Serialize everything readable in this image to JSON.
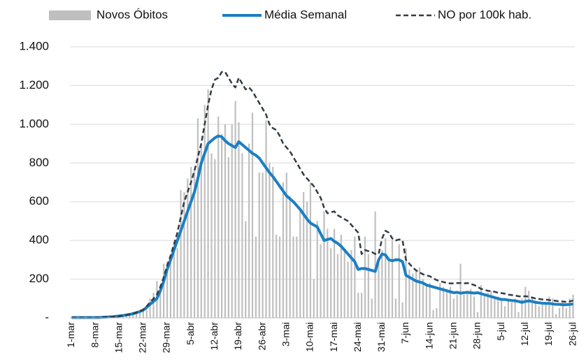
{
  "chart_data": {
    "type": "bar",
    "categories": [
      "1-mar",
      null,
      null,
      null,
      null,
      null,
      null,
      "8-mar",
      null,
      null,
      null,
      null,
      null,
      null,
      "15-mar",
      null,
      null,
      null,
      null,
      null,
      null,
      "22-mar",
      null,
      null,
      null,
      null,
      null,
      null,
      "29-mar",
      null,
      null,
      null,
      null,
      null,
      null,
      "5-abr",
      null,
      null,
      null,
      null,
      null,
      null,
      "12-abr",
      null,
      null,
      null,
      null,
      null,
      null,
      "19-abr",
      null,
      null,
      null,
      null,
      null,
      null,
      "26-abr",
      null,
      null,
      null,
      null,
      null,
      null,
      "3-mai",
      null,
      null,
      null,
      null,
      null,
      null,
      "10-mai",
      null,
      null,
      null,
      null,
      null,
      null,
      "17-mai",
      null,
      null,
      null,
      null,
      null,
      null,
      "24-mai",
      null,
      null,
      null,
      null,
      null,
      null,
      "31-mai",
      null,
      null,
      null,
      null,
      null,
      null,
      "7-jun",
      null,
      null,
      null,
      null,
      null,
      null,
      "14-jun",
      null,
      null,
      null,
      null,
      null,
      null,
      "21-jun",
      null,
      null,
      null,
      null,
      null,
      null,
      "28-jun",
      null,
      null,
      null,
      null,
      null,
      null,
      "5-jul",
      null,
      null,
      null,
      null,
      null,
      null,
      "12-jul",
      null,
      null,
      null,
      null,
      null,
      null,
      "19-jul",
      null,
      null,
      null,
      null,
      null,
      null,
      "26-jul"
    ],
    "series": [
      {
        "name": "Novos Óbitos",
        "type": "bar",
        "color": "#bfbfbf",
        "values": [
          0,
          0,
          0,
          0,
          0,
          0,
          0,
          0,
          0,
          5,
          5,
          5,
          8,
          10,
          12,
          15,
          20,
          25,
          30,
          35,
          40,
          50,
          60,
          100,
          130,
          190,
          170,
          280,
          290,
          300,
          380,
          360,
          660,
          650,
          720,
          780,
          760,
          1030,
          900,
          1100,
          1180,
          850,
          820,
          1040,
          950,
          1000,
          830,
          1000,
          1120,
          1010,
          850,
          500,
          900,
          1060,
          420,
          750,
          750,
          1020,
          800,
          780,
          430,
          420,
          700,
          750,
          630,
          420,
          420,
          550,
          650,
          600,
          700,
          200,
          500,
          380,
          550,
          460,
          360,
          460,
          330,
          430,
          350,
          290,
          350,
          420,
          130,
          130,
          420,
          330,
          100,
          550,
          300,
          350,
          410,
          300,
          400,
          100,
          380,
          80,
          360,
          250,
          230,
          250,
          260,
          200,
          170,
          180,
          40,
          50,
          180,
          160,
          150,
          160,
          100,
          120,
          280,
          120,
          140,
          150,
          110,
          30,
          170,
          120,
          130,
          140,
          100,
          110,
          100,
          60,
          90,
          80,
          100,
          30,
          100,
          160,
          140,
          110,
          90,
          60,
          80,
          70,
          110,
          100,
          20,
          50,
          80,
          50,
          100,
          120
        ]
      },
      {
        "name": "Média Semanal",
        "type": "line",
        "color": "#1a7fc4",
        "dashed": false,
        "values": [
          2,
          2,
          2,
          2,
          2,
          2,
          2,
          2,
          2,
          3,
          4,
          5,
          6,
          8,
          10,
          12,
          15,
          18,
          22,
          27,
          33,
          40,
          55,
          70,
          85,
          100,
          140,
          190,
          250,
          300,
          350,
          400,
          450,
          500,
          550,
          600,
          650,
          720,
          800,
          850,
          900,
          915,
          930,
          940,
          935,
          915,
          900,
          890,
          880,
          910,
          895,
          880,
          865,
          850,
          840,
          825,
          800,
          775,
          750,
          730,
          705,
          680,
          655,
          630,
          615,
          600,
          580,
          560,
          535,
          510,
          490,
          480,
          470,
          435,
          400,
          405,
          410,
          395,
          385,
          370,
          350,
          330,
          310,
          290,
          250,
          255,
          255,
          250,
          245,
          240,
          300,
          330,
          325,
          300,
          295,
          300,
          300,
          290,
          220,
          210,
          200,
          190,
          185,
          180,
          170,
          165,
          160,
          155,
          150,
          145,
          140,
          135,
          130,
          132,
          128,
          130,
          132,
          130,
          128,
          130,
          125,
          120,
          115,
          110,
          105,
          100,
          95,
          95,
          92,
          90,
          88,
          85,
          80,
          85,
          88,
          85,
          80,
          78,
          76,
          75,
          75,
          72,
          70,
          70,
          68,
          68,
          70,
          72
        ]
      },
      {
        "name": "NO por 100k hab.",
        "type": "line",
        "color": "#333b45",
        "dashed": true,
        "values": [
          2,
          2,
          2,
          2,
          2,
          2,
          2,
          2,
          2,
          3,
          4,
          5,
          6,
          8,
          10,
          12,
          15,
          18,
          22,
          28,
          35,
          42,
          60,
          80,
          100,
          120,
          160,
          210,
          270,
          320,
          380,
          440,
          520,
          600,
          650,
          700,
          760,
          830,
          900,
          1000,
          1100,
          1180,
          1230,
          1240,
          1270,
          1270,
          1240,
          1210,
          1190,
          1240,
          1210,
          1180,
          1190,
          1170,
          1140,
          1110,
          1080,
          1050,
          1000,
          980,
          970,
          940,
          900,
          880,
          860,
          830,
          800,
          770,
          740,
          720,
          700,
          680,
          650,
          620,
          570,
          540,
          545,
          550,
          530,
          520,
          510,
          500,
          480,
          460,
          440,
          330,
          350,
          345,
          340,
          330,
          330,
          410,
          450,
          440,
          410,
          400,
          405,
          400,
          300,
          280,
          260,
          245,
          235,
          225,
          220,
          215,
          205,
          195,
          190,
          185,
          180,
          178,
          178,
          180,
          180,
          178,
          180,
          175,
          170,
          160,
          150,
          145,
          140,
          138,
          135,
          130,
          128,
          125,
          120,
          118,
          115,
          112,
          110,
          112,
          110,
          105,
          100,
          98,
          95,
          95,
          92,
          90,
          88,
          85,
          85,
          82,
          85,
          90
        ]
      }
    ],
    "ylim": [
      0,
      1400
    ],
    "yticks": [
      {
        "value": 0,
        "label": "-"
      },
      200,
      400,
      600,
      800,
      {
        "value": 1000,
        "label": "1.000"
      },
      {
        "value": 1200,
        "label": "1.200"
      },
      {
        "value": 1400,
        "label": "1.400"
      }
    ],
    "grid": true,
    "legend": "top"
  }
}
